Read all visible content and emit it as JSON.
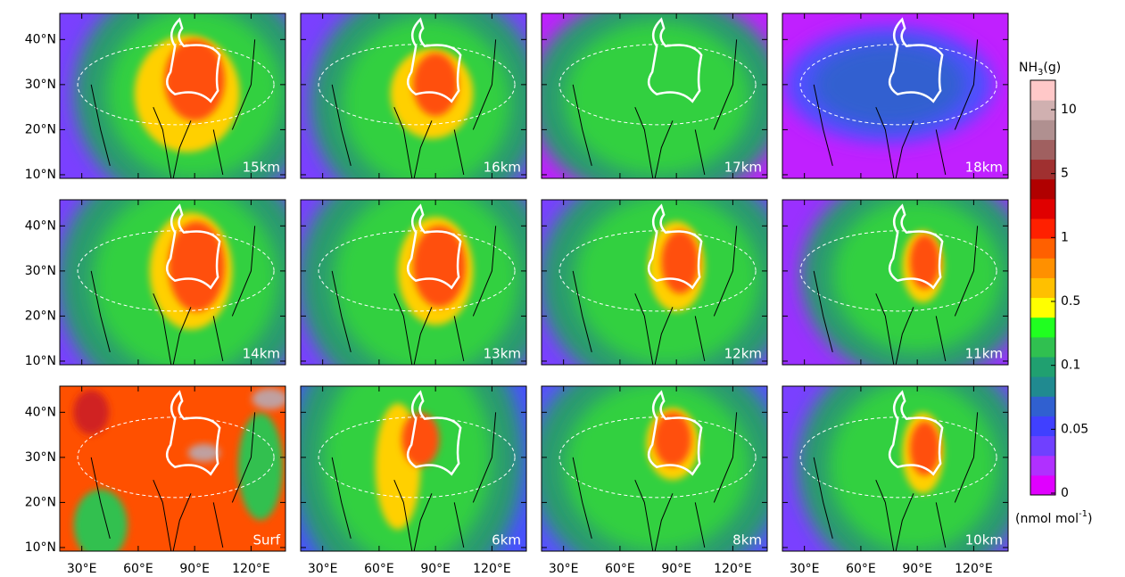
{
  "panels": [
    {
      "label": "15km"
    },
    {
      "label": "16km"
    },
    {
      "label": "17km"
    },
    {
      "label": "18km"
    },
    {
      "label": "14km"
    },
    {
      "label": "13km"
    },
    {
      "label": "12km"
    },
    {
      "label": "11km"
    },
    {
      "label": "Surf"
    },
    {
      "label": "6km"
    },
    {
      "label": "8km"
    },
    {
      "label": "10km"
    }
  ],
  "lat_ticks": [
    {
      "value": 10,
      "label": "10°N"
    },
    {
      "value": 20,
      "label": "20°N"
    },
    {
      "value": 30,
      "label": "30°N"
    },
    {
      "value": 40,
      "label": "40°N"
    }
  ],
  "lon_ticks": [
    {
      "value": 30,
      "label": "30°E"
    },
    {
      "value": 60,
      "label": "60°E"
    },
    {
      "value": 90,
      "label": "90°E"
    },
    {
      "value": 120,
      "label": "120°E"
    }
  ],
  "colorbar": {
    "title": [
      "NH",
      "3",
      "(g)"
    ],
    "unit": [
      "(nmol mol",
      "-1",
      ")"
    ],
    "ticks": [
      0,
      0.05,
      0.1,
      0.5,
      1,
      5,
      10
    ]
  }
}
